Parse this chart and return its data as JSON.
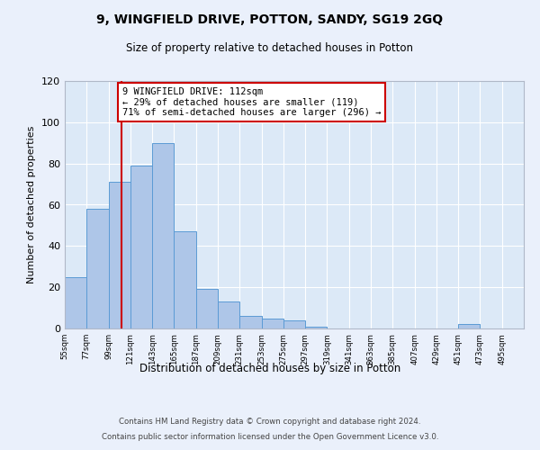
{
  "title": "9, WINGFIELD DRIVE, POTTON, SANDY, SG19 2GQ",
  "subtitle": "Size of property relative to detached houses in Potton",
  "xlabel": "Distribution of detached houses by size in Potton",
  "ylabel": "Number of detached properties",
  "bin_labels": [
    "55sqm",
    "77sqm",
    "99sqm",
    "121sqm",
    "143sqm",
    "165sqm",
    "187sqm",
    "209sqm",
    "231sqm",
    "253sqm",
    "275sqm",
    "297sqm",
    "319sqm",
    "341sqm",
    "363sqm",
    "385sqm",
    "407sqm",
    "429sqm",
    "451sqm",
    "473sqm",
    "495sqm"
  ],
  "bar_values": [
    25,
    58,
    71,
    79,
    90,
    47,
    19,
    13,
    6,
    5,
    4,
    1,
    0,
    0,
    0,
    0,
    0,
    0,
    2,
    0,
    0
  ],
  "bar_color": "#aec6e8",
  "bar_edge_color": "#5b9bd5",
  "background_color": "#eaf0fb",
  "plot_bg_color": "#dce9f7",
  "grid_color": "#ffffff",
  "vline_x": 112,
  "vline_color": "#cc0000",
  "annotation_title": "9 WINGFIELD DRIVE: 112sqm",
  "annotation_line1": "← 29% of detached houses are smaller (119)",
  "annotation_line2": "71% of semi-detached houses are larger (296) →",
  "annotation_box_color": "#ffffff",
  "annotation_box_edge": "#cc0000",
  "ylim": [
    0,
    120
  ],
  "yticks": [
    0,
    20,
    40,
    60,
    80,
    100,
    120
  ],
  "bin_edges": [
    55,
    77,
    99,
    121,
    143,
    165,
    187,
    209,
    231,
    253,
    275,
    297,
    319,
    341,
    363,
    385,
    407,
    429,
    451,
    473,
    495,
    517
  ],
  "footer_line1": "Contains HM Land Registry data © Crown copyright and database right 2024.",
  "footer_line2": "Contains public sector information licensed under the Open Government Licence v3.0."
}
